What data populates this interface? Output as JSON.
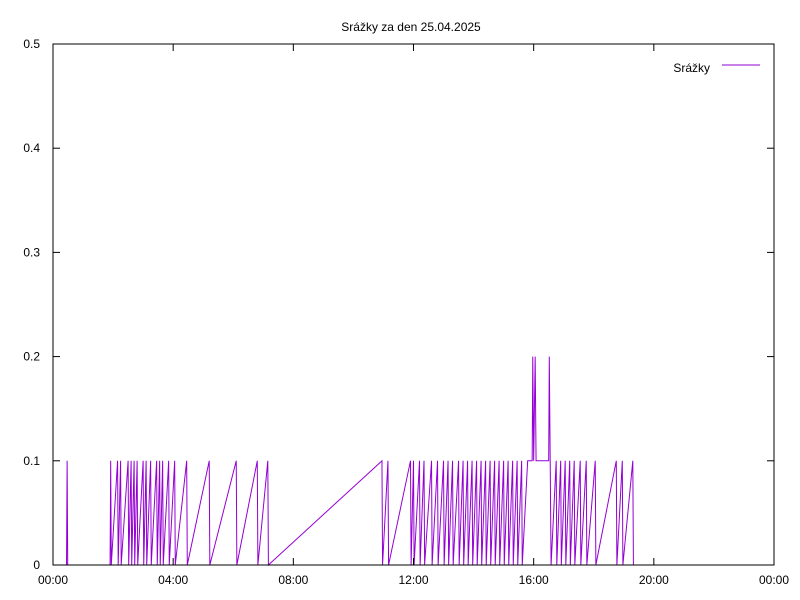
{
  "chart_data": {
    "type": "line",
    "title": "Srážky za den 25.04.2025",
    "xlabel": "",
    "ylabel": "",
    "xlim": [
      0,
      24
    ],
    "ylim": [
      0,
      0.5
    ],
    "x_ticks": [
      "00:00",
      "04:00",
      "08:00",
      "12:00",
      "16:00",
      "20:00",
      "00:00"
    ],
    "y_ticks": [
      "0",
      "0.1",
      "0.2",
      "0.3",
      "0.4",
      "0.5"
    ],
    "grid": false,
    "legend": "top-right",
    "line_color": "#9400d3",
    "series": [
      {
        "name": "Srážky",
        "points": [
          [
            0,
            0
          ],
          [
            0.45,
            0
          ],
          [
            0.47,
            0.1
          ],
          [
            0.49,
            0
          ],
          [
            1.9,
            0
          ],
          [
            1.92,
            0.1
          ],
          [
            1.94,
            0
          ],
          [
            2.15,
            0.1
          ],
          [
            2.17,
            0
          ],
          [
            2.25,
            0.1
          ],
          [
            2.27,
            0
          ],
          [
            2.5,
            0.1
          ],
          [
            2.52,
            0
          ],
          [
            2.6,
            0.1
          ],
          [
            2.62,
            0
          ],
          [
            2.7,
            0.1
          ],
          [
            2.72,
            0
          ],
          [
            2.8,
            0.1
          ],
          [
            2.82,
            0
          ],
          [
            3.0,
            0.1
          ],
          [
            3.02,
            0
          ],
          [
            3.1,
            0.1
          ],
          [
            3.12,
            0
          ],
          [
            3.25,
            0.1
          ],
          [
            3.27,
            0
          ],
          [
            3.45,
            0.1
          ],
          [
            3.47,
            0
          ],
          [
            3.55,
            0.1
          ],
          [
            3.57,
            0
          ],
          [
            3.65,
            0.1
          ],
          [
            3.67,
            0
          ],
          [
            3.85,
            0.1
          ],
          [
            3.87,
            0
          ],
          [
            4.05,
            0.1
          ],
          [
            4.07,
            0
          ],
          [
            4.45,
            0.1
          ],
          [
            4.47,
            0
          ],
          [
            5.2,
            0.1
          ],
          [
            5.22,
            0
          ],
          [
            6.1,
            0.1
          ],
          [
            6.12,
            0
          ],
          [
            6.8,
            0.1
          ],
          [
            6.82,
            0
          ],
          [
            7.15,
            0.1
          ],
          [
            7.17,
            0
          ],
          [
            10.95,
            0.1
          ],
          [
            10.97,
            0
          ],
          [
            11.15,
            0.1
          ],
          [
            11.17,
            0
          ],
          [
            11.9,
            0.1
          ],
          [
            11.92,
            0
          ],
          [
            12.0,
            0.1
          ],
          [
            12.02,
            0
          ],
          [
            12.2,
            0.1
          ],
          [
            12.22,
            0
          ],
          [
            12.35,
            0.1
          ],
          [
            12.37,
            0
          ],
          [
            12.6,
            0.1
          ],
          [
            12.62,
            0
          ],
          [
            12.8,
            0.1
          ],
          [
            12.82,
            0
          ],
          [
            13.0,
            0.1
          ],
          [
            13.02,
            0
          ],
          [
            13.15,
            0.1
          ],
          [
            13.17,
            0
          ],
          [
            13.3,
            0.1
          ],
          [
            13.32,
            0
          ],
          [
            13.5,
            0.1
          ],
          [
            13.52,
            0
          ],
          [
            13.65,
            0.1
          ],
          [
            13.67,
            0
          ],
          [
            13.8,
            0.1
          ],
          [
            13.82,
            0
          ],
          [
            13.95,
            0.1
          ],
          [
            13.97,
            0
          ],
          [
            14.1,
            0.1
          ],
          [
            14.12,
            0
          ],
          [
            14.25,
            0.1
          ],
          [
            14.27,
            0
          ],
          [
            14.4,
            0.1
          ],
          [
            14.42,
            0
          ],
          [
            14.55,
            0.1
          ],
          [
            14.57,
            0
          ],
          [
            14.7,
            0.1
          ],
          [
            14.72,
            0
          ],
          [
            14.85,
            0.1
          ],
          [
            14.87,
            0
          ],
          [
            15.0,
            0.1
          ],
          [
            15.02,
            0
          ],
          [
            15.15,
            0.1
          ],
          [
            15.17,
            0
          ],
          [
            15.3,
            0.1
          ],
          [
            15.32,
            0
          ],
          [
            15.45,
            0.1
          ],
          [
            15.47,
            0
          ],
          [
            15.6,
            0.1
          ],
          [
            15.62,
            0
          ],
          [
            15.8,
            0.1
          ],
          [
            15.95,
            0.1
          ],
          [
            15.97,
            0.2
          ],
          [
            16.0,
            0.1
          ],
          [
            16.05,
            0.2
          ],
          [
            16.08,
            0.1
          ],
          [
            16.5,
            0.1
          ],
          [
            16.52,
            0.2
          ],
          [
            16.55,
            0.1
          ],
          [
            16.58,
            0
          ],
          [
            16.75,
            0.1
          ],
          [
            16.77,
            0
          ],
          [
            16.9,
            0.1
          ],
          [
            16.92,
            0
          ],
          [
            17.05,
            0.1
          ],
          [
            17.07,
            0
          ],
          [
            17.2,
            0.1
          ],
          [
            17.22,
            0
          ],
          [
            17.35,
            0.1
          ],
          [
            17.37,
            0
          ],
          [
            17.55,
            0.1
          ],
          [
            17.57,
            0
          ],
          [
            17.75,
            0.1
          ],
          [
            17.77,
            0
          ],
          [
            18.05,
            0.1
          ],
          [
            18.07,
            0
          ],
          [
            18.75,
            0.1
          ],
          [
            18.77,
            0
          ],
          [
            18.95,
            0.1
          ],
          [
            18.97,
            0
          ],
          [
            19.3,
            0.1
          ],
          [
            19.32,
            0
          ],
          [
            24,
            0
          ]
        ]
      }
    ]
  }
}
